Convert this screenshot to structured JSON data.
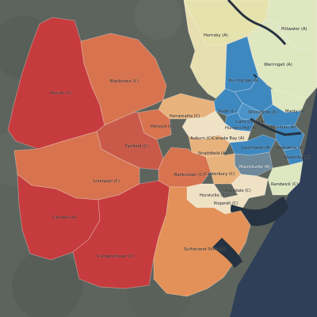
{
  "map": {
    "colors": {
      "background": "#5f6660",
      "ocean": "#2f3f57",
      "water": "#253241",
      "dark_red": "#c63b3d",
      "mid_red": "#c95a49",
      "orange": "#d8734f",
      "light_orange": "#e39158",
      "peach": "#e8b27c",
      "cream": "#efe1c4",
      "tan": "#d9b98a",
      "light_yellow": "#e6e2ad",
      "pale_green": "#dfe7c0",
      "blue": "#3e88c0",
      "steel": "#6e8a9c"
    },
    "lgas": [
      {
        "key": "hornsby",
        "label": "Hornsby (A)",
        "color": "#e6e2ad"
      },
      {
        "key": "pittwater",
        "label": "Pittwater (A)",
        "color": "#dfe7c0"
      },
      {
        "key": "warringah",
        "label": "Warringah (A)",
        "color": "#dfe7c0"
      },
      {
        "key": "kuringgai",
        "label": "Ku-ring-gai (A)",
        "color": "#3e88c0"
      },
      {
        "key": "penrith",
        "label": "Penrith (C)",
        "color": "#c63b3d"
      },
      {
        "key": "blacktown",
        "label": "Blacktown (C)",
        "color": "#d8734f"
      },
      {
        "key": "parramatta",
        "label": "Parramatta (C)",
        "color": "#e8b27c"
      },
      {
        "key": "ryde",
        "label": "Ryde (C)",
        "color": "#3e88c0"
      },
      {
        "key": "willoughby",
        "label": "Willoughby (C)",
        "color": "#3e88c0"
      },
      {
        "key": "lanecove",
        "label": "Lane Cove (A)",
        "color": "#3e88c0"
      },
      {
        "key": "manly",
        "label": "Manly (A)",
        "color": "#dfe7c0"
      },
      {
        "key": "holroyd",
        "label": "Holroyd (C)",
        "color": "#d8734f"
      },
      {
        "key": "huntershill",
        "label": "Hunters Hill (A)",
        "color": "#3e88c0"
      },
      {
        "key": "mosman",
        "label": "Mosman (A)",
        "color": "#3e88c0"
      },
      {
        "key": "auburn",
        "label": "Auburn (C)",
        "color": "#efe1c4"
      },
      {
        "key": "canadabay",
        "label": "Canada Bay (A)",
        "color": "#efe1c4"
      },
      {
        "key": "fairfield",
        "label": "Fairfield (C)",
        "color": "#c95a49"
      },
      {
        "key": "leichhardt",
        "label": "Leichhardt (A)",
        "color": "#3e88c0"
      },
      {
        "key": "woollahra",
        "label": "Woollahra (A)",
        "color": "#3e88c0"
      },
      {
        "key": "strathfield",
        "label": "Strathfield (A)",
        "color": "#e8b27c"
      },
      {
        "key": "waverley",
        "label": "Waverley (A)",
        "color": "#3e88c0"
      },
      {
        "key": "marrickville",
        "label": "Marrickville (A)",
        "color": "#6e8a9c"
      },
      {
        "key": "bankstown",
        "label": "Bankstown (C)",
        "color": "#d8734f"
      },
      {
        "key": "liverpool",
        "label": "Liverpool (C)",
        "color": "#d8734f"
      },
      {
        "key": "canterbury",
        "label": "Canterbury (C)",
        "color": "#e8b27c"
      },
      {
        "key": "randwick",
        "label": "Randwick (C)",
        "color": "#dfe7c0"
      },
      {
        "key": "hurstville",
        "label": "Hurstville (C)",
        "color": "#efe1c4"
      },
      {
        "key": "rockdale",
        "label": "Rockdale (C)",
        "color": "#efe1c4"
      },
      {
        "key": "kogarah",
        "label": "Kogarah (C)",
        "color": "#efe1c4"
      },
      {
        "key": "camden",
        "label": "Camden (A)",
        "color": "#c63b3d"
      },
      {
        "key": "sutherland",
        "label": "Sutherland Shire (A)",
        "color": "#e39158"
      },
      {
        "key": "campbelltown",
        "label": "Campbelltown (C)",
        "color": "#c63b3d"
      }
    ]
  }
}
